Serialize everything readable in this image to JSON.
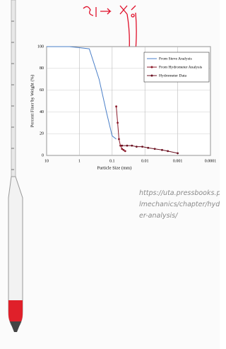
{
  "chart_data": {
    "type": "line",
    "xlabel": "Particle Size (mm)",
    "ylabel": "Percent Finer by Weight (%)",
    "xscale": "log",
    "xlim": [
      10,
      0.0001
    ],
    "xticks": [
      10,
      1,
      0.1,
      0.01,
      0.001,
      0.0001
    ],
    "ylim": [
      0,
      100
    ],
    "yticks": [
      0,
      20,
      40,
      60,
      80,
      100
    ],
    "grid": true,
    "legend": "upper right",
    "series": [
      {
        "name": "From Sieve Analysis",
        "color": "#4a7fc8",
        "markers": false,
        "x": [
          10,
          4.75,
          2,
          1,
          0.5,
          0.25,
          0.15,
          0.1,
          0.075
        ],
        "values": [
          100,
          100,
          100,
          99,
          98,
          70,
          40,
          18,
          15
        ]
      },
      {
        "name": "From Hydrometer Analysis",
        "color": "#8b1a2a",
        "markers": true,
        "x": [
          0.075,
          0.068,
          0.062,
          0.056,
          0.05,
          0.045,
          0.04
        ],
        "values": [
          45,
          30,
          15,
          9,
          6,
          5,
          4
        ]
      },
      {
        "name": "Hydrometer Data",
        "color": "#6a1020",
        "markers": true,
        "x": [
          0.05,
          0.035,
          0.025,
          0.018,
          0.012,
          0.008,
          0.005,
          0.003,
          0.002,
          0.001
        ],
        "values": [
          9,
          9,
          9,
          8,
          8,
          7,
          6,
          5,
          4,
          2
        ]
      }
    ]
  },
  "caption": [
    "https://uta.pressbooks.p",
    "lmechanics/chapter/hyd",
    "er-analysis/"
  ]
}
